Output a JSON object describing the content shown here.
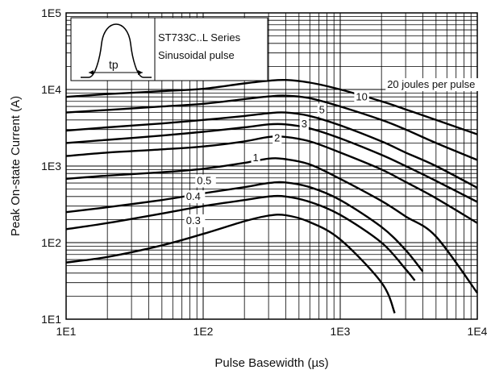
{
  "chart_data": {
    "type": "line",
    "xlabel": "Pulse Basewidth (µs)",
    "ylabel": "Peak On-state Current (A)",
    "x_scale": "log",
    "y_scale": "log",
    "xlim": [
      10,
      10000
    ],
    "ylim": [
      10,
      100000
    ],
    "x_ticks": [
      {
        "value": 10,
        "label": "1E1"
      },
      {
        "value": 100,
        "label": "1E2"
      },
      {
        "value": 1000,
        "label": "1E3"
      },
      {
        "value": 10000,
        "label": "1E4"
      }
    ],
    "y_ticks": [
      {
        "value": 10,
        "label": "1E1"
      },
      {
        "value": 100,
        "label": "1E2"
      },
      {
        "value": 1000,
        "label": "1E3"
      },
      {
        "value": 10000,
        "label": "1E4"
      },
      {
        "value": 100000,
        "label": "1E5"
      }
    ],
    "grid": true,
    "inset": {
      "series_label": "ST733C..L Series",
      "pulse_label": "Sinusoidal pulse",
      "width_label": "tp"
    },
    "series": [
      {
        "name": "20 joules per pulse",
        "label_x": 2200,
        "label_y": 10500,
        "points": [
          [
            10,
            8000
          ],
          [
            20,
            8700
          ],
          [
            50,
            9500
          ],
          [
            100,
            10200
          ],
          [
            200,
            12000
          ],
          [
            300,
            13000
          ],
          [
            400,
            13300
          ],
          [
            600,
            12300
          ],
          [
            1000,
            10000
          ],
          [
            2000,
            7000
          ],
          [
            3000,
            5500
          ],
          [
            5000,
            4000
          ],
          [
            10000,
            2600
          ]
        ]
      },
      {
        "name": "10",
        "label_x": 1300,
        "label_y": 7200,
        "points": [
          [
            10,
            5000
          ],
          [
            20,
            5400
          ],
          [
            50,
            6000
          ],
          [
            100,
            6500
          ],
          [
            200,
            7500
          ],
          [
            300,
            8100
          ],
          [
            400,
            8300
          ],
          [
            600,
            7700
          ],
          [
            1000,
            6000
          ],
          [
            2000,
            4000
          ],
          [
            3000,
            3000
          ],
          [
            5000,
            2000
          ],
          [
            10000,
            1200
          ]
        ]
      },
      {
        "name": "5",
        "label_x": 700,
        "label_y": 4900,
        "points": [
          [
            10,
            2900
          ],
          [
            20,
            3200
          ],
          [
            50,
            3600
          ],
          [
            100,
            4000
          ],
          [
            200,
            4500
          ],
          [
            300,
            4900
          ],
          [
            400,
            5000
          ],
          [
            600,
            4500
          ],
          [
            1000,
            3400
          ],
          [
            2000,
            2100
          ],
          [
            3000,
            1500
          ],
          [
            5000,
            1000
          ],
          [
            10000,
            520
          ]
        ]
      },
      {
        "name": "3",
        "label_x": 520,
        "label_y": 3200,
        "points": [
          [
            10,
            2000
          ],
          [
            20,
            2200
          ],
          [
            50,
            2500
          ],
          [
            100,
            2800
          ],
          [
            200,
            3200
          ],
          [
            300,
            3500
          ],
          [
            400,
            3500
          ],
          [
            600,
            3100
          ],
          [
            1000,
            2300
          ],
          [
            2000,
            1400
          ],
          [
            3000,
            1000
          ],
          [
            5000,
            640
          ],
          [
            10000,
            340
          ]
        ]
      },
      {
        "name": "2",
        "label_x": 330,
        "label_y": 2100,
        "points": [
          [
            10,
            1350
          ],
          [
            20,
            1500
          ],
          [
            50,
            1650
          ],
          [
            100,
            1800
          ],
          [
            200,
            2100
          ],
          [
            300,
            2400
          ],
          [
            400,
            2400
          ],
          [
            600,
            2100
          ],
          [
            1000,
            1500
          ],
          [
            2000,
            900
          ],
          [
            3000,
            620
          ],
          [
            5000,
            380
          ],
          [
            10000,
            180
          ]
        ]
      },
      {
        "name": "1",
        "label_x": 230,
        "label_y": 1150,
        "points": [
          [
            10,
            680
          ],
          [
            20,
            750
          ],
          [
            50,
            830
          ],
          [
            100,
            920
          ],
          [
            200,
            1100
          ],
          [
            300,
            1250
          ],
          [
            400,
            1230
          ],
          [
            600,
            1050
          ],
          [
            1000,
            680
          ],
          [
            2000,
            350
          ],
          [
            3000,
            220
          ],
          [
            5000,
            120
          ],
          [
            10000,
            22
          ]
        ]
      },
      {
        "name": "0.5",
        "label_x": 90,
        "label_y": 580,
        "points": [
          [
            10,
            250
          ],
          [
            20,
            290
          ],
          [
            50,
            360
          ],
          [
            100,
            440
          ],
          [
            200,
            530
          ],
          [
            300,
            600
          ],
          [
            400,
            610
          ],
          [
            600,
            530
          ],
          [
            1000,
            360
          ],
          [
            2000,
            160
          ],
          [
            3000,
            80
          ],
          [
            4000,
            42
          ]
        ]
      },
      {
        "name": "0.4",
        "label_x": 75,
        "label_y": 360,
        "points": [
          [
            10,
            150
          ],
          [
            20,
            180
          ],
          [
            50,
            240
          ],
          [
            100,
            300
          ],
          [
            200,
            360
          ],
          [
            300,
            400
          ],
          [
            400,
            400
          ],
          [
            600,
            340
          ],
          [
            1000,
            230
          ],
          [
            2000,
            100
          ],
          [
            3000,
            45
          ],
          [
            3500,
            32
          ]
        ]
      },
      {
        "name": "0.3",
        "label_x": 75,
        "label_y": 175,
        "points": [
          [
            10,
            55
          ],
          [
            20,
            65
          ],
          [
            50,
            92
          ],
          [
            100,
            130
          ],
          [
            200,
            190
          ],
          [
            300,
            225
          ],
          [
            400,
            228
          ],
          [
            600,
            185
          ],
          [
            1000,
            110
          ],
          [
            2000,
            30
          ],
          [
            2500,
            12
          ]
        ]
      }
    ]
  }
}
